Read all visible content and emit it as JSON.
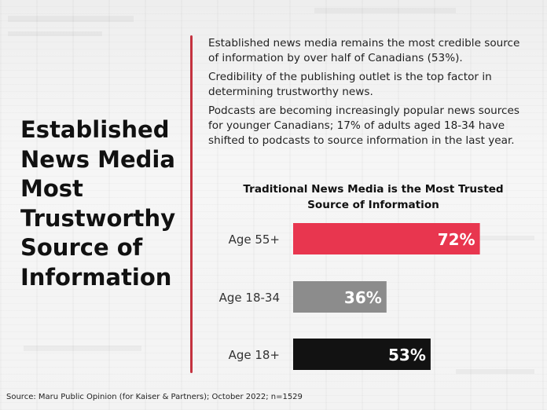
{
  "headline": [
    "Established",
    "News Media",
    "Most",
    "Trustworthy",
    "Source of",
    "Information"
  ],
  "bullets": [
    "Established news media remains the most credible source of information by over half of Canadians (53%).",
    "Credibility of the publishing outlet is the top factor in determining trustworthy news.",
    "Podcasts are becoming increasingly popular news sources for younger Canadians; 17% of adults aged 18-34 have shifted to podcasts to source information in the last year."
  ],
  "source": "Source: Maru Public Opinion (for Kaiser & Partners); October 2022; n=1529",
  "chart_data": {
    "type": "bar",
    "orientation": "horizontal",
    "title": "Traditional News Media is the Most Trusted Source of Information",
    "categories": [
      "Age 55+",
      "Age 18-34",
      "Age 18+"
    ],
    "values": [
      72,
      36,
      53
    ],
    "data_labels": [
      "72%",
      "36%",
      "53%"
    ],
    "colors": [
      "#e8364f",
      "#8c8c8c",
      "#121212"
    ],
    "xlim": [
      0,
      100
    ],
    "grid": false,
    "legend": "none"
  }
}
